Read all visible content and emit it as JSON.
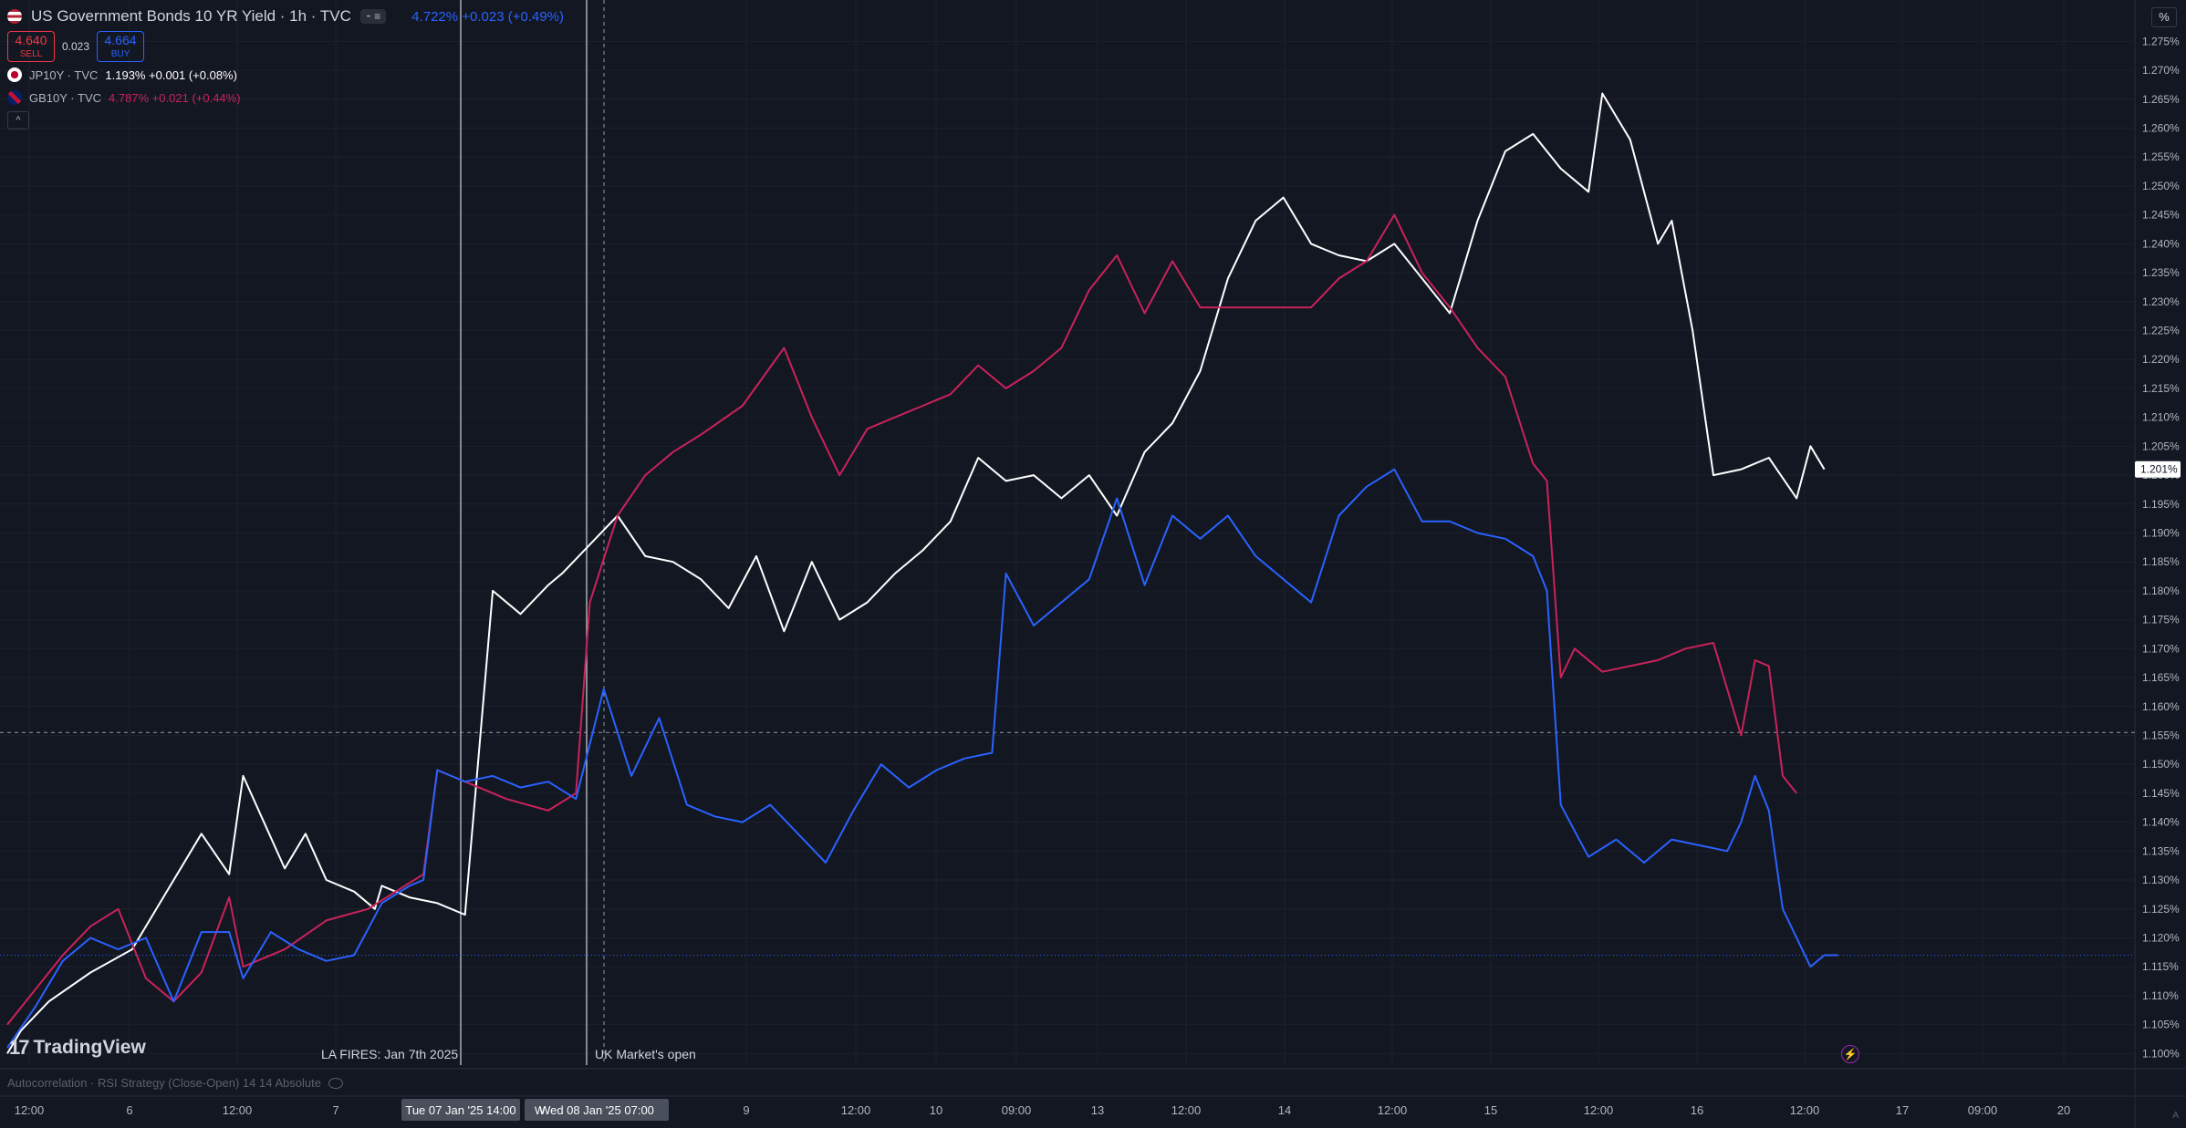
{
  "header": {
    "title": "US Government Bonds 10 YR Yield · 1h · TVC",
    "quote": "4.722% +0.023 (+0.49%)",
    "sell_price": "4.640",
    "sell_label": "SELL",
    "spread": "0.023",
    "buy_price": "4.664",
    "buy_label": "BUY",
    "collapse_icon": "chevron-up-icon",
    "percent_toggle": "%"
  },
  "compare": [
    {
      "name": "JP10Y · TVC",
      "value": "1.193% +0.001 (+0.08%)",
      "color": "#ffffff"
    },
    {
      "name": "GB10Y · TVC",
      "value": "4.787% +0.021 (+0.44%)",
      "color": "#c9235a"
    }
  ],
  "branding": {
    "logo": "TradingView"
  },
  "annotations": {
    "la_fires": "LA FIRES: Jan 7th 2025",
    "uk_open": "UK Market's open"
  },
  "indicator": {
    "label": "Autocorrelation · RSI Strategy (Close-Open) 14 14 Absolute"
  },
  "colors": {
    "us": "#2962ff",
    "jp": "#ffffff",
    "gb": "#c9235a",
    "background": "#131722",
    "grid": "#1e222d"
  },
  "chart_data": {
    "type": "line",
    "title": "US Government Bonds 10 YR Yield · 1h · TVC",
    "ylim": [
      1.098,
      1.279
    ],
    "y_ticks": [
      "1.100%",
      "1.105%",
      "1.110%",
      "1.115%",
      "1.120%",
      "1.125%",
      "1.130%",
      "1.135%",
      "1.140%",
      "1.145%",
      "1.150%",
      "1.155%",
      "1.160%",
      "1.165%",
      "1.170%",
      "1.175%",
      "1.180%",
      "1.185%",
      "1.190%",
      "1.195%",
      "1.200%",
      "1.205%",
      "1.210%",
      "1.215%",
      "1.220%",
      "1.225%",
      "1.230%",
      "1.235%",
      "1.240%",
      "1.245%",
      "1.250%",
      "1.255%",
      "1.260%",
      "1.265%",
      "1.270%",
      "1.275%"
    ],
    "x_ticks": [
      "12:00",
      "6",
      "12:00",
      "7",
      "9",
      "12:00",
      "10",
      "09:00",
      "13",
      "12:00",
      "14",
      "12:00",
      "15",
      "12:00",
      "16",
      "12:00",
      "17",
      "09:00",
      "20"
    ],
    "x_tick_highlights": [
      "Tue 07 Jan '25   14:00",
      "Wed 08 Jan '25   07:00"
    ],
    "crosshair_label": "W",
    "last_value_label": "1.201%",
    "grid": true,
    "series": [
      {
        "name": "JP10Y · TVC",
        "color": "#ffffff",
        "points": [
          [
            0,
            1.1
          ],
          [
            10,
            1.104
          ],
          [
            30,
            1.109
          ],
          [
            60,
            1.114
          ],
          [
            90,
            1.118
          ],
          [
            110,
            1.126
          ],
          [
            140,
            1.138
          ],
          [
            160,
            1.131
          ],
          [
            170,
            1.148
          ],
          [
            200,
            1.132
          ],
          [
            215,
            1.138
          ],
          [
            230,
            1.13
          ],
          [
            250,
            1.128
          ],
          [
            265,
            1.125
          ],
          [
            270,
            1.129
          ],
          [
            290,
            1.127
          ],
          [
            310,
            1.126
          ],
          [
            330,
            1.124
          ],
          [
            350,
            1.18
          ],
          [
            370,
            1.176
          ],
          [
            390,
            1.181
          ],
          [
            400,
            1.183
          ],
          [
            420,
            1.188
          ],
          [
            440,
            1.193
          ],
          [
            460,
            1.186
          ],
          [
            480,
            1.185
          ],
          [
            500,
            1.182
          ],
          [
            520,
            1.177
          ],
          [
            540,
            1.186
          ],
          [
            560,
            1.173
          ],
          [
            580,
            1.185
          ],
          [
            600,
            1.175
          ],
          [
            620,
            1.178
          ],
          [
            640,
            1.183
          ],
          [
            660,
            1.187
          ],
          [
            680,
            1.192
          ],
          [
            700,
            1.203
          ],
          [
            720,
            1.199
          ],
          [
            740,
            1.2
          ],
          [
            760,
            1.196
          ],
          [
            780,
            1.2
          ],
          [
            800,
            1.193
          ],
          [
            820,
            1.204
          ],
          [
            840,
            1.209
          ],
          [
            860,
            1.218
          ],
          [
            880,
            1.234
          ],
          [
            900,
            1.244
          ],
          [
            920,
            1.248
          ],
          [
            940,
            1.24
          ],
          [
            960,
            1.238
          ],
          [
            980,
            1.237
          ],
          [
            1000,
            1.24
          ],
          [
            1020,
            1.234
          ],
          [
            1040,
            1.228
          ],
          [
            1060,
            1.244
          ],
          [
            1080,
            1.256
          ],
          [
            1100,
            1.259
          ],
          [
            1120,
            1.253
          ],
          [
            1140,
            1.249
          ],
          [
            1150,
            1.266
          ],
          [
            1170,
            1.258
          ],
          [
            1190,
            1.24
          ],
          [
            1200,
            1.244
          ],
          [
            1215,
            1.225
          ],
          [
            1230,
            1.2
          ],
          [
            1250,
            1.201
          ],
          [
            1270,
            1.203
          ],
          [
            1290,
            1.196
          ],
          [
            1300,
            1.205
          ],
          [
            1310,
            1.201
          ]
        ]
      },
      {
        "name": "GB10Y · TVC",
        "color": "#c9235a",
        "points": [
          [
            0,
            1.105
          ],
          [
            20,
            1.111
          ],
          [
            40,
            1.117
          ],
          [
            60,
            1.122
          ],
          [
            80,
            1.125
          ],
          [
            100,
            1.113
          ],
          [
            120,
            1.109
          ],
          [
            140,
            1.114
          ],
          [
            160,
            1.127
          ],
          [
            170,
            1.115
          ],
          [
            200,
            1.118
          ],
          [
            230,
            1.123
          ],
          [
            260,
            1.125
          ],
          [
            280,
            1.128
          ],
          [
            300,
            1.131
          ],
          [
            310,
            1.149
          ],
          [
            330,
            1.147
          ],
          [
            360,
            1.144
          ],
          [
            390,
            1.142
          ],
          [
            410,
            1.145
          ],
          [
            420,
            1.178
          ],
          [
            440,
            1.193
          ],
          [
            460,
            1.2
          ],
          [
            480,
            1.204
          ],
          [
            500,
            1.207
          ],
          [
            530,
            1.212
          ],
          [
            560,
            1.222
          ],
          [
            580,
            1.21
          ],
          [
            600,
            1.2
          ],
          [
            620,
            1.208
          ],
          [
            640,
            1.21
          ],
          [
            660,
            1.212
          ],
          [
            680,
            1.214
          ],
          [
            700,
            1.219
          ],
          [
            720,
            1.215
          ],
          [
            740,
            1.218
          ],
          [
            760,
            1.222
          ],
          [
            780,
            1.232
          ],
          [
            800,
            1.238
          ],
          [
            820,
            1.228
          ],
          [
            840,
            1.237
          ],
          [
            860,
            1.229
          ],
          [
            880,
            1.229
          ],
          [
            900,
            1.229
          ],
          [
            920,
            1.229
          ],
          [
            940,
            1.229
          ],
          [
            960,
            1.234
          ],
          [
            980,
            1.237
          ],
          [
            1000,
            1.245
          ],
          [
            1020,
            1.235
          ],
          [
            1040,
            1.229
          ],
          [
            1060,
            1.222
          ],
          [
            1080,
            1.217
          ],
          [
            1100,
            1.202
          ],
          [
            1110,
            1.199
          ],
          [
            1120,
            1.165
          ],
          [
            1130,
            1.17
          ],
          [
            1150,
            1.166
          ],
          [
            1170,
            1.167
          ],
          [
            1190,
            1.168
          ],
          [
            1210,
            1.17
          ],
          [
            1230,
            1.171
          ],
          [
            1250,
            1.155
          ],
          [
            1260,
            1.168
          ],
          [
            1270,
            1.167
          ],
          [
            1280,
            1.148
          ],
          [
            1290,
            1.145
          ]
        ]
      },
      {
        "name": "US10Y · TVC",
        "color": "#2962ff",
        "points": [
          [
            0,
            1.101
          ],
          [
            20,
            1.108
          ],
          [
            40,
            1.116
          ],
          [
            60,
            1.12
          ],
          [
            80,
            1.118
          ],
          [
            100,
            1.12
          ],
          [
            120,
            1.109
          ],
          [
            140,
            1.121
          ],
          [
            160,
            1.121
          ],
          [
            170,
            1.113
          ],
          [
            190,
            1.121
          ],
          [
            210,
            1.118
          ],
          [
            230,
            1.116
          ],
          [
            250,
            1.117
          ],
          [
            270,
            1.126
          ],
          [
            290,
            1.129
          ],
          [
            300,
            1.13
          ],
          [
            310,
            1.149
          ],
          [
            330,
            1.147
          ],
          [
            350,
            1.148
          ],
          [
            370,
            1.146
          ],
          [
            390,
            1.147
          ],
          [
            410,
            1.144
          ],
          [
            430,
            1.163
          ],
          [
            450,
            1.148
          ],
          [
            470,
            1.158
          ],
          [
            490,
            1.143
          ],
          [
            510,
            1.141
          ],
          [
            530,
            1.14
          ],
          [
            550,
            1.143
          ],
          [
            570,
            1.138
          ],
          [
            590,
            1.133
          ],
          [
            610,
            1.142
          ],
          [
            630,
            1.15
          ],
          [
            650,
            1.146
          ],
          [
            670,
            1.149
          ],
          [
            690,
            1.151
          ],
          [
            710,
            1.152
          ],
          [
            720,
            1.183
          ],
          [
            740,
            1.174
          ],
          [
            760,
            1.178
          ],
          [
            780,
            1.182
          ],
          [
            800,
            1.196
          ],
          [
            820,
            1.181
          ],
          [
            840,
            1.193
          ],
          [
            860,
            1.189
          ],
          [
            880,
            1.193
          ],
          [
            900,
            1.186
          ],
          [
            920,
            1.182
          ],
          [
            940,
            1.178
          ],
          [
            960,
            1.193
          ],
          [
            980,
            1.198
          ],
          [
            1000,
            1.201
          ],
          [
            1020,
            1.192
          ],
          [
            1040,
            1.192
          ],
          [
            1060,
            1.19
          ],
          [
            1080,
            1.189
          ],
          [
            1100,
            1.186
          ],
          [
            1110,
            1.18
          ],
          [
            1120,
            1.143
          ],
          [
            1140,
            1.134
          ],
          [
            1160,
            1.137
          ],
          [
            1180,
            1.133
          ],
          [
            1200,
            1.137
          ],
          [
            1220,
            1.136
          ],
          [
            1240,
            1.135
          ],
          [
            1250,
            1.14
          ],
          [
            1260,
            1.148
          ],
          [
            1270,
            1.142
          ],
          [
            1280,
            1.125
          ],
          [
            1300,
            1.115
          ],
          [
            1310,
            1.117
          ],
          [
            1320,
            1.117
          ]
        ]
      }
    ]
  }
}
